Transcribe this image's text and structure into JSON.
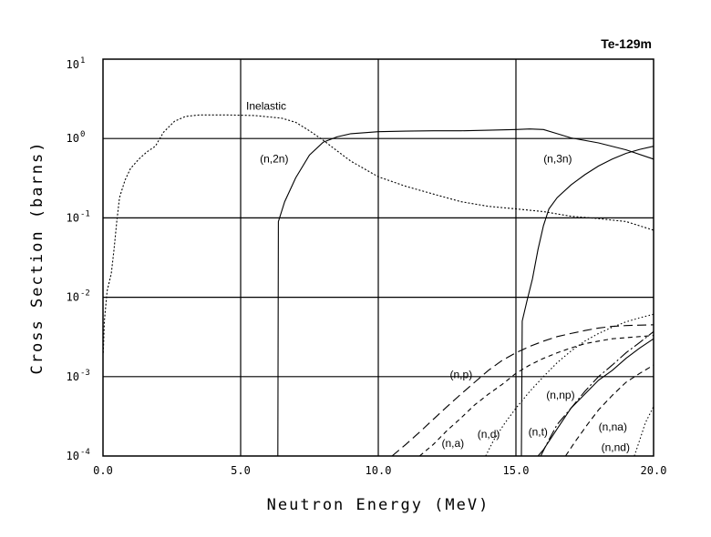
{
  "chart_data": {
    "type": "line",
    "title": "Te-129m",
    "xlabel": "Neutron Energy (MeV)",
    "ylabel": "Cross Section (barns)",
    "xscale": "linear",
    "yscale": "log",
    "xlim": [
      0,
      20
    ],
    "ylim": [
      0.0001,
      10
    ],
    "grid": true,
    "x_ticks": [
      "0.0",
      "5.0",
      "10.0",
      "15.0",
      "20.0"
    ],
    "y_ticks": [
      {
        "base": "10",
        "exp": "1"
      },
      {
        "base": "10",
        "exp": "0"
      },
      {
        "base": "10",
        "exp": "-1"
      },
      {
        "base": "10",
        "exp": "-2"
      },
      {
        "base": "10",
        "exp": "-3"
      },
      {
        "base": "10",
        "exp": "-4"
      }
    ],
    "series": [
      {
        "name": "Inelastic",
        "dash": "2,2",
        "label_at": [
          5.2,
          2.3
        ],
        "points": [
          [
            0.01,
            0.002
          ],
          [
            0.05,
            0.005
          ],
          [
            0.15,
            0.012
          ],
          [
            0.3,
            0.02
          ],
          [
            0.4,
            0.04
          ],
          [
            0.5,
            0.09
          ],
          [
            0.6,
            0.18
          ],
          [
            0.8,
            0.3
          ],
          [
            1.0,
            0.42
          ],
          [
            1.3,
            0.55
          ],
          [
            1.6,
            0.68
          ],
          [
            1.9,
            0.8
          ],
          [
            2.2,
            1.2
          ],
          [
            2.6,
            1.65
          ],
          [
            3.0,
            1.9
          ],
          [
            3.5,
            1.98
          ],
          [
            4.5,
            1.98
          ],
          [
            5.5,
            1.95
          ],
          [
            6.5,
            1.8
          ],
          [
            7.0,
            1.6
          ],
          [
            7.5,
            1.25
          ],
          [
            8.0,
            0.95
          ],
          [
            8.5,
            0.7
          ],
          [
            9.0,
            0.52
          ],
          [
            10.0,
            0.33
          ],
          [
            11.0,
            0.25
          ],
          [
            12.0,
            0.2
          ],
          [
            13.0,
            0.16
          ],
          [
            14.0,
            0.14
          ],
          [
            15.0,
            0.13
          ],
          [
            16.0,
            0.12
          ],
          [
            17.0,
            0.105
          ],
          [
            18.0,
            0.098
          ],
          [
            19.0,
            0.09
          ],
          [
            20.0,
            0.07
          ]
        ]
      },
      {
        "name": "(n,2n)",
        "dash": "",
        "label_at": [
          5.7,
          0.5
        ],
        "points": [
          [
            6.35,
            0.0001
          ],
          [
            6.37,
            0.09
          ],
          [
            6.6,
            0.16
          ],
          [
            7.0,
            0.32
          ],
          [
            7.5,
            0.62
          ],
          [
            8.0,
            0.9
          ],
          [
            8.5,
            1.05
          ],
          [
            9.0,
            1.15
          ],
          [
            10.0,
            1.22
          ],
          [
            11.0,
            1.24
          ],
          [
            12.0,
            1.25
          ],
          [
            13.0,
            1.25
          ],
          [
            14.0,
            1.27
          ],
          [
            15.0,
            1.3
          ],
          [
            15.5,
            1.32
          ],
          [
            16.0,
            1.3
          ],
          [
            16.5,
            1.15
          ],
          [
            17.0,
            1.02
          ],
          [
            18.0,
            0.88
          ],
          [
            19.0,
            0.72
          ],
          [
            20.0,
            0.55
          ]
        ]
      },
      {
        "name": "(n,3n)",
        "dash": "",
        "label_at": [
          16.0,
          0.5
        ],
        "points": [
          [
            15.2,
            0.0001
          ],
          [
            15.23,
            0.005
          ],
          [
            15.4,
            0.009
          ],
          [
            15.6,
            0.017
          ],
          [
            15.8,
            0.04
          ],
          [
            16.0,
            0.08
          ],
          [
            16.2,
            0.13
          ],
          [
            16.5,
            0.18
          ],
          [
            17.0,
            0.26
          ],
          [
            17.5,
            0.35
          ],
          [
            18.0,
            0.45
          ],
          [
            18.5,
            0.55
          ],
          [
            19.0,
            0.65
          ],
          [
            19.5,
            0.73
          ],
          [
            20.0,
            0.8
          ]
        ]
      },
      {
        "name": "(n,p)",
        "dash": "10,5",
        "label_at": [
          12.6,
          0.00095
        ],
        "points": [
          [
            10.5,
            0.0001
          ],
          [
            11.0,
            0.00014
          ],
          [
            11.5,
            0.0002
          ],
          [
            12.0,
            0.00029
          ],
          [
            12.5,
            0.00042
          ],
          [
            13.0,
            0.0006
          ],
          [
            13.5,
            0.00085
          ],
          [
            14.0,
            0.0012
          ],
          [
            14.5,
            0.0016
          ],
          [
            15.0,
            0.002
          ],
          [
            15.5,
            0.0024
          ],
          [
            16.0,
            0.0028
          ],
          [
            16.5,
            0.0032
          ],
          [
            17.0,
            0.0035
          ],
          [
            17.5,
            0.0038
          ],
          [
            18.0,
            0.0041
          ],
          [
            18.5,
            0.0043
          ],
          [
            19.0,
            0.0044
          ],
          [
            20.0,
            0.0045
          ]
        ]
      },
      {
        "name": "(n,a)",
        "dash": "5,4",
        "label_at": [
          12.3,
          0.00013
        ],
        "points": [
          [
            11.5,
            0.0001
          ],
          [
            12.0,
            0.00014
          ],
          [
            12.5,
            0.00021
          ],
          [
            13.0,
            0.0003
          ],
          [
            13.5,
            0.00044
          ],
          [
            14.0,
            0.0006
          ],
          [
            14.5,
            0.0008
          ],
          [
            15.0,
            0.0011
          ],
          [
            15.5,
            0.0014
          ],
          [
            16.0,
            0.0017
          ],
          [
            16.5,
            0.002
          ],
          [
            17.0,
            0.0023
          ],
          [
            17.5,
            0.0026
          ],
          [
            18.0,
            0.0028
          ],
          [
            18.5,
            0.003
          ],
          [
            19.0,
            0.0031
          ],
          [
            20.0,
            0.0033
          ]
        ]
      },
      {
        "name": "(n,d)",
        "dash": "1.5,2.5",
        "label_at": [
          13.6,
          0.00017
        ],
        "points": [
          [
            13.9,
            0.0001
          ],
          [
            14.2,
            0.00016
          ],
          [
            14.6,
            0.00026
          ],
          [
            15.0,
            0.0004
          ],
          [
            15.5,
            0.00065
          ],
          [
            16.0,
            0.001
          ],
          [
            16.5,
            0.0015
          ],
          [
            17.0,
            0.0021
          ],
          [
            17.5,
            0.0028
          ],
          [
            18.0,
            0.0035
          ],
          [
            18.5,
            0.0042
          ],
          [
            19.0,
            0.0049
          ],
          [
            19.5,
            0.0055
          ],
          [
            20.0,
            0.0061
          ]
        ]
      },
      {
        "name": "(n,t)",
        "dash": "12,3,2,3",
        "label_at": [
          15.45,
          0.00018
        ],
        "points": [
          [
            15.9,
            0.0001
          ],
          [
            16.2,
            0.00016
          ],
          [
            16.5,
            0.00025
          ],
          [
            17.0,
            0.0004
          ],
          [
            17.5,
            0.00065
          ],
          [
            18.0,
            0.001
          ],
          [
            18.5,
            0.0014
          ],
          [
            19.0,
            0.002
          ],
          [
            19.5,
            0.0027
          ],
          [
            20.0,
            0.0037
          ]
        ]
      },
      {
        "name": "(n,np)",
        "dash": "",
        "label_at": [
          16.1,
          0.00053
        ],
        "points": [
          [
            15.8,
            0.0001
          ],
          [
            16.0,
            0.00012
          ],
          [
            16.5,
            0.00022
          ],
          [
            17.0,
            0.0004
          ],
          [
            17.5,
            0.0006
          ],
          [
            18.0,
            0.0009
          ],
          [
            18.5,
            0.0012
          ],
          [
            19.0,
            0.0017
          ],
          [
            19.5,
            0.0023
          ],
          [
            20.0,
            0.003
          ]
        ]
      },
      {
        "name": "(n,na)",
        "dash": "6,4",
        "label_at": [
          18.0,
          0.00021
        ],
        "points": [
          [
            16.8,
            0.0001
          ],
          [
            17.2,
            0.00016
          ],
          [
            17.6,
            0.00025
          ],
          [
            18.0,
            0.00038
          ],
          [
            18.5,
            0.00058
          ],
          [
            19.0,
            0.00085
          ],
          [
            19.5,
            0.0011
          ],
          [
            20.0,
            0.0014
          ]
        ]
      },
      {
        "name": "(n,nd)",
        "dash": "1.5,2.5",
        "label_at": [
          18.1,
          0.000115
        ],
        "points": [
          [
            19.3,
            0.0001
          ],
          [
            19.5,
            0.00016
          ],
          [
            19.7,
            0.00026
          ],
          [
            20.0,
            0.00042
          ]
        ]
      }
    ]
  }
}
